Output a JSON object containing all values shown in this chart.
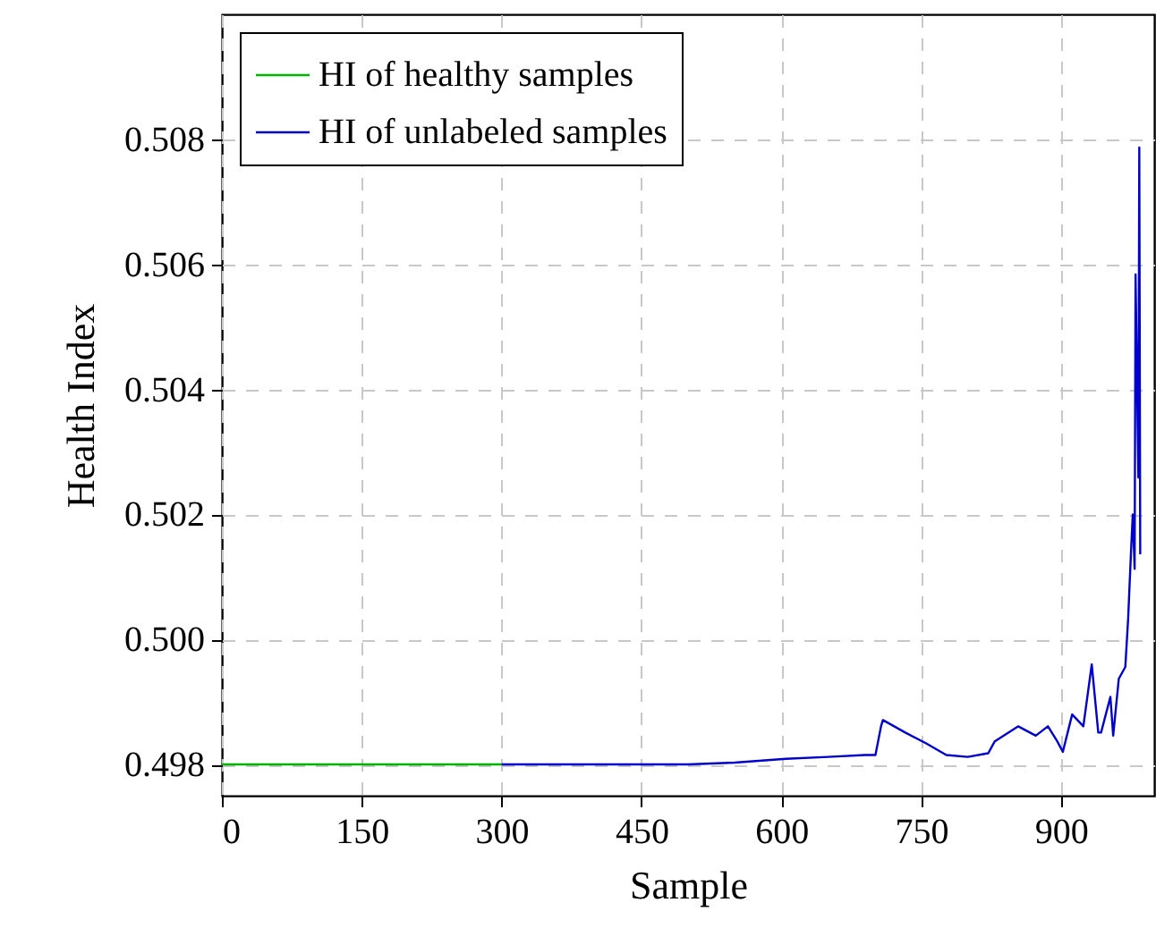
{
  "chart_data": {
    "type": "line",
    "xlabel": "Sample",
    "ylabel": "Health Index",
    "xlim": [
      0,
      1000
    ],
    "ylim": [
      0.4975,
      0.51
    ],
    "xticks": [
      0,
      150,
      300,
      450,
      600,
      750,
      900
    ],
    "yticks": [
      0.498,
      {
        "value": 0.5,
        "label": "0.500"
      },
      0.502,
      0.504,
      0.506,
      0.508
    ],
    "grid": true,
    "legend": "top left",
    "marker": "none",
    "line_style": "solid",
    "series": [
      {
        "name": "HI of healthy samples",
        "color": "#00b400",
        "x": [
          0,
          50,
          100,
          150,
          200,
          250,
          300
        ],
        "values": [
          0.498,
          0.498,
          0.498,
          0.498,
          0.498,
          0.498,
          0.498
        ]
      },
      {
        "name": "HI of unlabeled samples",
        "color": "#0000cc",
        "x": [
          300,
          350,
          400,
          450,
          500,
          550,
          605,
          650,
          690,
          701,
          707,
          709,
          733,
          755,
          777,
          800,
          822,
          829,
          854,
          873,
          886,
          896,
          902,
          912,
          924,
          933,
          940,
          943,
          953,
          956,
          962,
          969,
          972,
          975,
          977,
          979,
          980,
          983,
          984,
          985
        ],
        "values": [
          0.498,
          0.498,
          0.498,
          0.498,
          0.498,
          0.49803,
          0.49809,
          0.49812,
          0.49815,
          0.49815,
          0.49861,
          0.49871,
          0.49851,
          0.49834,
          0.49815,
          0.49812,
          0.49818,
          0.49837,
          0.49861,
          0.49846,
          0.49861,
          0.49837,
          0.4982,
          0.4988,
          0.49861,
          0.4996,
          0.49851,
          0.49851,
          0.49908,
          0.49846,
          0.49937,
          0.49956,
          0.50032,
          0.50136,
          0.502,
          0.50113,
          0.50584,
          0.50259,
          0.50787,
          0.50136
        ]
      }
    ]
  }
}
